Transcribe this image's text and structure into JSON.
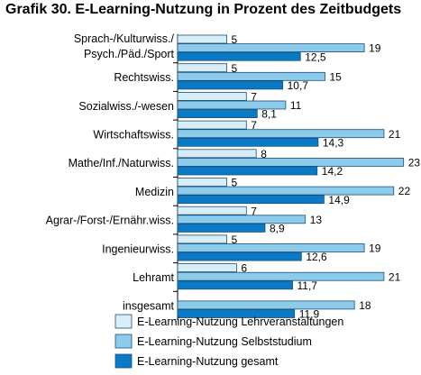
{
  "chart_data": {
    "type": "bar",
    "orientation": "horizontal",
    "title": "Grafik 30. E-Learning-Nutzung in Prozent des Zeitbudgets",
    "xlabel": "",
    "ylabel": "",
    "xlim": [
      0,
      24
    ],
    "grid": false,
    "legend_position": "bottom-left",
    "categories": [
      "Sprach-/Kulturwiss./ Psych./Päd./Sport",
      "Rechtswiss.",
      "Sozialwiss./-wesen",
      "Wirtschaftswiss.",
      "Mathe/Inf./Naturwiss.",
      "Medizin",
      "Agrar-/Forst-/Ernähr.wiss.",
      "Ingenieurwiss.",
      "Lehramt",
      "insgesamt"
    ],
    "category_lines": [
      [
        "Sprach-/Kulturwiss./",
        "Psych./Päd./Sport"
      ],
      [
        "Rechtswiss."
      ],
      [
        "Sozialwiss./-wesen"
      ],
      [
        "Wirtschaftswiss."
      ],
      [
        "Mathe/Inf./Naturwiss."
      ],
      [
        "Medizin"
      ],
      [
        "Agrar-/Forst-/Ernähr.wiss."
      ],
      [
        "Ingenieurwiss."
      ],
      [
        "Lehramt"
      ],
      [
        "insgesamt"
      ]
    ],
    "series": [
      {
        "name": "E-Learning-Nutzung Lehrveranstaltungen",
        "color": "#d7eef7",
        "values": [
          5,
          5,
          7,
          7,
          8,
          5,
          7,
          5,
          6,
          null
        ],
        "labels": [
          "5",
          "5",
          "7",
          "7",
          "8",
          "5",
          "7",
          "5",
          "6",
          ""
        ]
      },
      {
        "name": "E-Learning-Nutzung Selbststudium",
        "color": "#8ccbea",
        "values": [
          19,
          15,
          11,
          21,
          23,
          22,
          13,
          19,
          21,
          18
        ],
        "labels": [
          "19",
          "15",
          "11",
          "21",
          "23",
          "22",
          "13",
          "19",
          "21",
          "18"
        ]
      },
      {
        "name": "E-Learning-Nutzung gesamt",
        "color": "#0a7ac6",
        "values": [
          12.5,
          10.7,
          8.1,
          14.3,
          14.2,
          14.9,
          8.9,
          12.6,
          11.7,
          11.9
        ],
        "labels": [
          "12,5",
          "10,7",
          "8,1",
          "14,3",
          "14,2",
          "14,9",
          "8,9",
          "12,6",
          "11,7",
          "11,9"
        ]
      }
    ],
    "stroke_color": "#1a4f7a"
  }
}
